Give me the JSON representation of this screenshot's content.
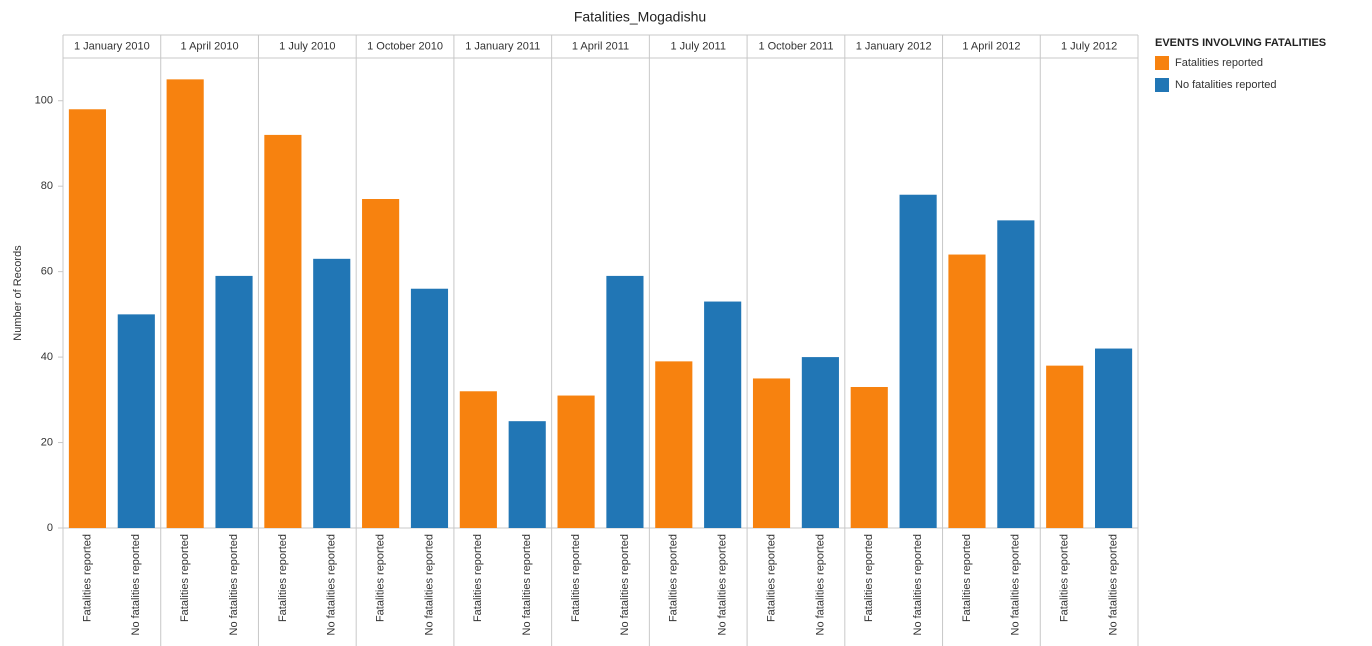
{
  "chart_data": {
    "type": "bar",
    "title": "Fatalities_Mogadishu",
    "y_label": "Number of Records",
    "legend_title": "EVENTS INVOLVING FATALITIES",
    "categories": [
      "1 January 2010",
      "1 April 2010",
      "1 July 2010",
      "1 October 2010",
      "1 January 2011",
      "1 April 2011",
      "1 July 2011",
      "1 October 2011",
      "1 January 2012",
      "1 April 2012",
      "1 July 2012"
    ],
    "series": [
      {
        "name": "Fatalities reported",
        "color": "#f7820f",
        "values": [
          98,
          105,
          92,
          77,
          32,
          31,
          39,
          35,
          33,
          64,
          38
        ]
      },
      {
        "name": "No fatalities reported",
        "color": "#2176b5",
        "values": [
          50,
          59,
          63,
          56,
          25,
          59,
          53,
          40,
          78,
          72,
          42
        ]
      }
    ],
    "ylim": [
      0,
      110
    ],
    "yticks": [
      0,
      20,
      40,
      60,
      80,
      100
    ]
  }
}
